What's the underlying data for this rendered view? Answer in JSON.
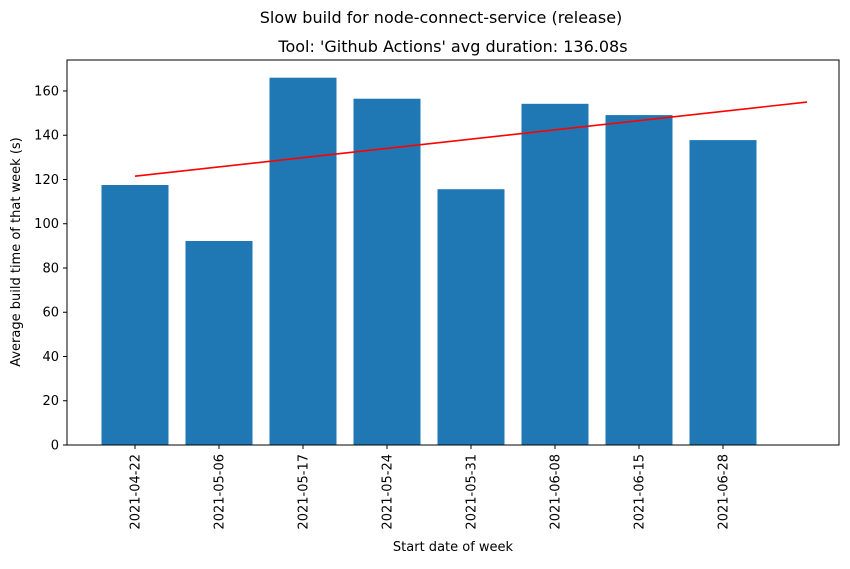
{
  "chart_data": {
    "type": "bar",
    "suptitle": "Slow build for node-connect-service (release)",
    "title": "Tool: 'Github Actions' avg duration: 136.08s",
    "xlabel": "Start date of week",
    "ylabel": "Average build time of that week (s)",
    "categories": [
      "2021-04-22",
      "2021-05-06",
      "2021-05-17",
      "2021-05-24",
      "2021-05-31",
      "2021-06-08",
      "2021-06-15",
      "2021-06-28"
    ],
    "values": [
      117.5,
      92.2,
      166.0,
      156.5,
      115.6,
      154.2,
      149.1,
      137.8
    ],
    "yticks": [
      0,
      20,
      40,
      60,
      80,
      100,
      120,
      140,
      160
    ],
    "ylim": [
      0,
      174
    ],
    "bar_color": "#1f77b4",
    "trend_line": {
      "color": "#ff0000",
      "start": {
        "x_index": 0,
        "value": 121.5
      },
      "end": {
        "x_index": 8,
        "value": 155.0
      }
    },
    "grid": false,
    "legend": "none"
  }
}
